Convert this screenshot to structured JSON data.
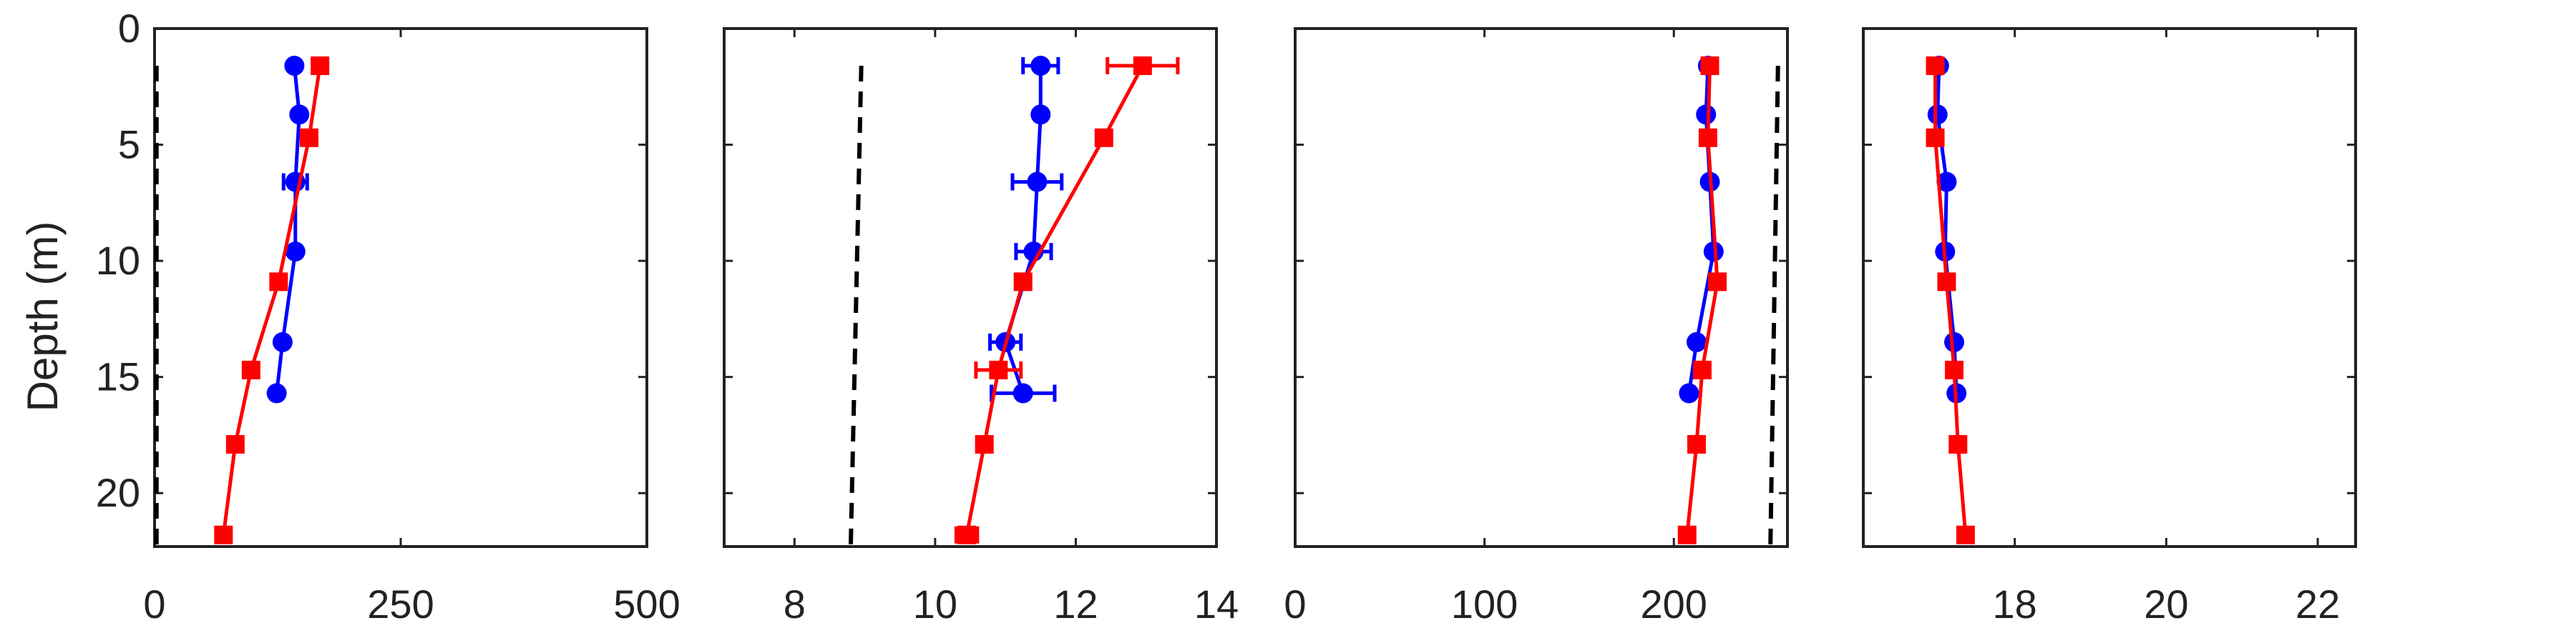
{
  "figure": {
    "ylabel": "Depth (m)",
    "y_ticks": [
      0,
      5,
      10,
      15,
      20
    ],
    "ylim": [
      0,
      22.3
    ],
    "y_reversed": true
  },
  "chart_data": [
    {
      "type": "line",
      "xlim": [
        0,
        500
      ],
      "x_ticks": [
        0,
        250,
        500
      ],
      "x_tick_labels": [
        "0",
        "250",
        "500"
      ],
      "series": [
        {
          "color": "#0000ff",
          "marker": "circle",
          "points": [
            {
              "x": 142,
              "y": 1.6
            },
            {
              "x": 147,
              "y": 3.7
            },
            {
              "x": 143,
              "y": 6.6,
              "xerr": 12
            },
            {
              "x": 143,
              "y": 9.6
            },
            {
              "x": 130,
              "y": 13.5
            },
            {
              "x": 124,
              "y": 15.7
            }
          ]
        },
        {
          "color": "#ff0000",
          "marker": "square",
          "points": [
            {
              "x": 168,
              "y": 1.6
            },
            {
              "x": 157,
              "y": 4.7
            },
            {
              "x": 126,
              "y": 10.9
            },
            {
              "x": 98,
              "y": 14.7
            },
            {
              "x": 82,
              "y": 17.9
            },
            {
              "x": 70,
              "y": 21.8
            }
          ]
        },
        {
          "color": "#000000",
          "dashed": true,
          "noMarkers": true,
          "points": [
            {
              "x": 2,
              "y": 1.6
            },
            {
              "x": 2,
              "y": 22.3
            }
          ]
        }
      ]
    },
    {
      "type": "line",
      "xlim": [
        7,
        14
      ],
      "x_ticks": [
        8,
        10,
        12,
        14
      ],
      "x_tick_labels": [
        "8",
        "10",
        "12",
        "14"
      ],
      "series": [
        {
          "color": "#0000ff",
          "marker": "circle",
          "points": [
            {
              "x": 11.5,
              "y": 1.6,
              "xerr": 0.25
            },
            {
              "x": 11.5,
              "y": 3.7
            },
            {
              "x": 11.45,
              "y": 6.6,
              "xerr": 0.35
            },
            {
              "x": 11.4,
              "y": 9.6,
              "xerr": 0.25
            },
            {
              "x": 11.0,
              "y": 13.5,
              "xerr": 0.22
            },
            {
              "x": 11.25,
              "y": 15.7,
              "xerr": 0.45
            }
          ]
        },
        {
          "color": "#ff0000",
          "marker": "square",
          "points": [
            {
              "x": 12.95,
              "y": 1.6,
              "xerr": 0.5
            },
            {
              "x": 12.4,
              "y": 4.7,
              "xerr": 0.1
            },
            {
              "x": 11.25,
              "y": 10.9
            },
            {
              "x": 10.9,
              "y": 14.7,
              "xerr": 0.32
            },
            {
              "x": 10.7,
              "y": 17.9
            },
            {
              "x": 10.45,
              "y": 21.8,
              "xerr": 0.15
            }
          ]
        },
        {
          "color": "#000000",
          "dashed": true,
          "noMarkers": true,
          "points": [
            {
              "x": 8.95,
              "y": 1.6
            },
            {
              "x": 8.8,
              "y": 22.3
            }
          ]
        }
      ]
    },
    {
      "type": "line",
      "xlim": [
        0,
        260
      ],
      "x_ticks": [
        0,
        100,
        200
      ],
      "x_tick_labels": [
        "0",
        "100",
        "200"
      ],
      "series": [
        {
          "color": "#0000ff",
          "marker": "circle",
          "points": [
            {
              "x": 218,
              "y": 1.6
            },
            {
              "x": 217,
              "y": 3.7
            },
            {
              "x": 219,
              "y": 6.6
            },
            {
              "x": 221,
              "y": 9.6
            },
            {
              "x": 212,
              "y": 13.5
            },
            {
              "x": 208,
              "y": 15.7
            }
          ]
        },
        {
          "color": "#ff0000",
          "marker": "square",
          "points": [
            {
              "x": 219,
              "y": 1.6
            },
            {
              "x": 218,
              "y": 4.7
            },
            {
              "x": 223,
              "y": 10.9
            },
            {
              "x": 215,
              "y": 14.7
            },
            {
              "x": 212,
              "y": 17.9
            },
            {
              "x": 207,
              "y": 21.8
            }
          ]
        },
        {
          "color": "#000000",
          "dashed": true,
          "noMarkers": true,
          "points": [
            {
              "x": 255,
              "y": 1.6
            },
            {
              "x": 251,
              "y": 22.3
            }
          ]
        }
      ]
    },
    {
      "type": "line",
      "xlim": [
        16.0,
        22.5
      ],
      "x_ticks": [
        18,
        20,
        22
      ],
      "x_tick_labels": [
        "18",
        "20",
        "22"
      ],
      "series": [
        {
          "color": "#0000ff",
          "marker": "circle",
          "points": [
            {
              "x": 17.0,
              "y": 1.6
            },
            {
              "x": 16.98,
              "y": 3.7
            },
            {
              "x": 17.1,
              "y": 6.6
            },
            {
              "x": 17.08,
              "y": 9.6
            },
            {
              "x": 17.2,
              "y": 13.5
            },
            {
              "x": 17.23,
              "y": 15.7
            }
          ]
        },
        {
          "color": "#ff0000",
          "marker": "square",
          "points": [
            {
              "x": 16.95,
              "y": 1.6
            },
            {
              "x": 16.95,
              "y": 4.7
            },
            {
              "x": 17.1,
              "y": 10.9
            },
            {
              "x": 17.2,
              "y": 14.7
            },
            {
              "x": 17.25,
              "y": 17.9
            },
            {
              "x": 17.35,
              "y": 21.8
            }
          ]
        }
      ]
    }
  ]
}
